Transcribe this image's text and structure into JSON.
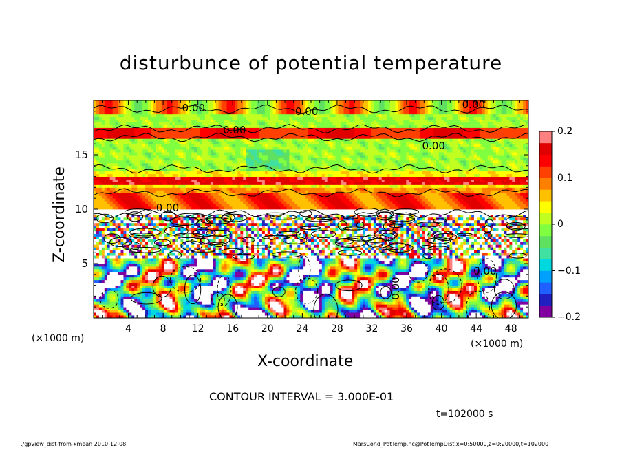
{
  "chart_data": {
    "type": "heatmap",
    "title": "disturbunce of potential temperature",
    "xlabel": "X-coordinate",
    "ylabel": "Z-coordinate",
    "x_unit_label": "(×1000 m)",
    "x_unit_label_right": "(×1000 m)",
    "xlim": [
      0,
      50
    ],
    "ylim": [
      0,
      20
    ],
    "x_ticks": [
      4,
      8,
      12,
      16,
      20,
      24,
      28,
      32,
      36,
      40,
      44,
      48
    ],
    "y_ticks": [
      5,
      10,
      15
    ],
    "colorbar": {
      "range": [
        -0.2,
        0.2
      ],
      "tick_labels": [
        "0.2",
        "0.1",
        "0",
        "−0.1",
        "−0.2"
      ],
      "tick_values": [
        0.2,
        0.1,
        0,
        -0.1,
        -0.2
      ],
      "colors": [
        "#8000a0",
        "#2020c0",
        "#2060ff",
        "#00a0ff",
        "#00d8e0",
        "#40e0a0",
        "#60e060",
        "#80ff40",
        "#c0ff20",
        "#ffff00",
        "#ffc000",
        "#ff8000",
        "#ff4000",
        "#ff0000",
        "#e00000",
        "#ff8080"
      ]
    },
    "contour_labels": [
      {
        "text": "0.00",
        "x": 11.5,
        "z": 19.3
      },
      {
        "text": "0.00",
        "x": 24.5,
        "z": 19.0
      },
      {
        "text": "0.00",
        "x": 43.7,
        "z": 19.6
      },
      {
        "text": "0.00",
        "x": 16.2,
        "z": 17.3
      },
      {
        "text": "0.00",
        "x": 39.1,
        "z": 15.8
      },
      {
        "text": "0.00",
        "x": 8.5,
        "z": 10.1
      },
      {
        "text": "0.00",
        "x": 34.7,
        "z": 2.7
      },
      {
        "text": "0.00",
        "x": 45.0,
        "z": 4.3
      }
    ],
    "contour_interval_text": "CONTOUR INTERVAL = 3.000E-01",
    "time_text": "t=102000  s"
  },
  "footer": {
    "left": "./gpview_dist-from-xmean  2010-12-08",
    "right": "MarsCond_PotTemp.nc@PotTempDist,x=0:50000,z=0:20000,t=102000"
  }
}
